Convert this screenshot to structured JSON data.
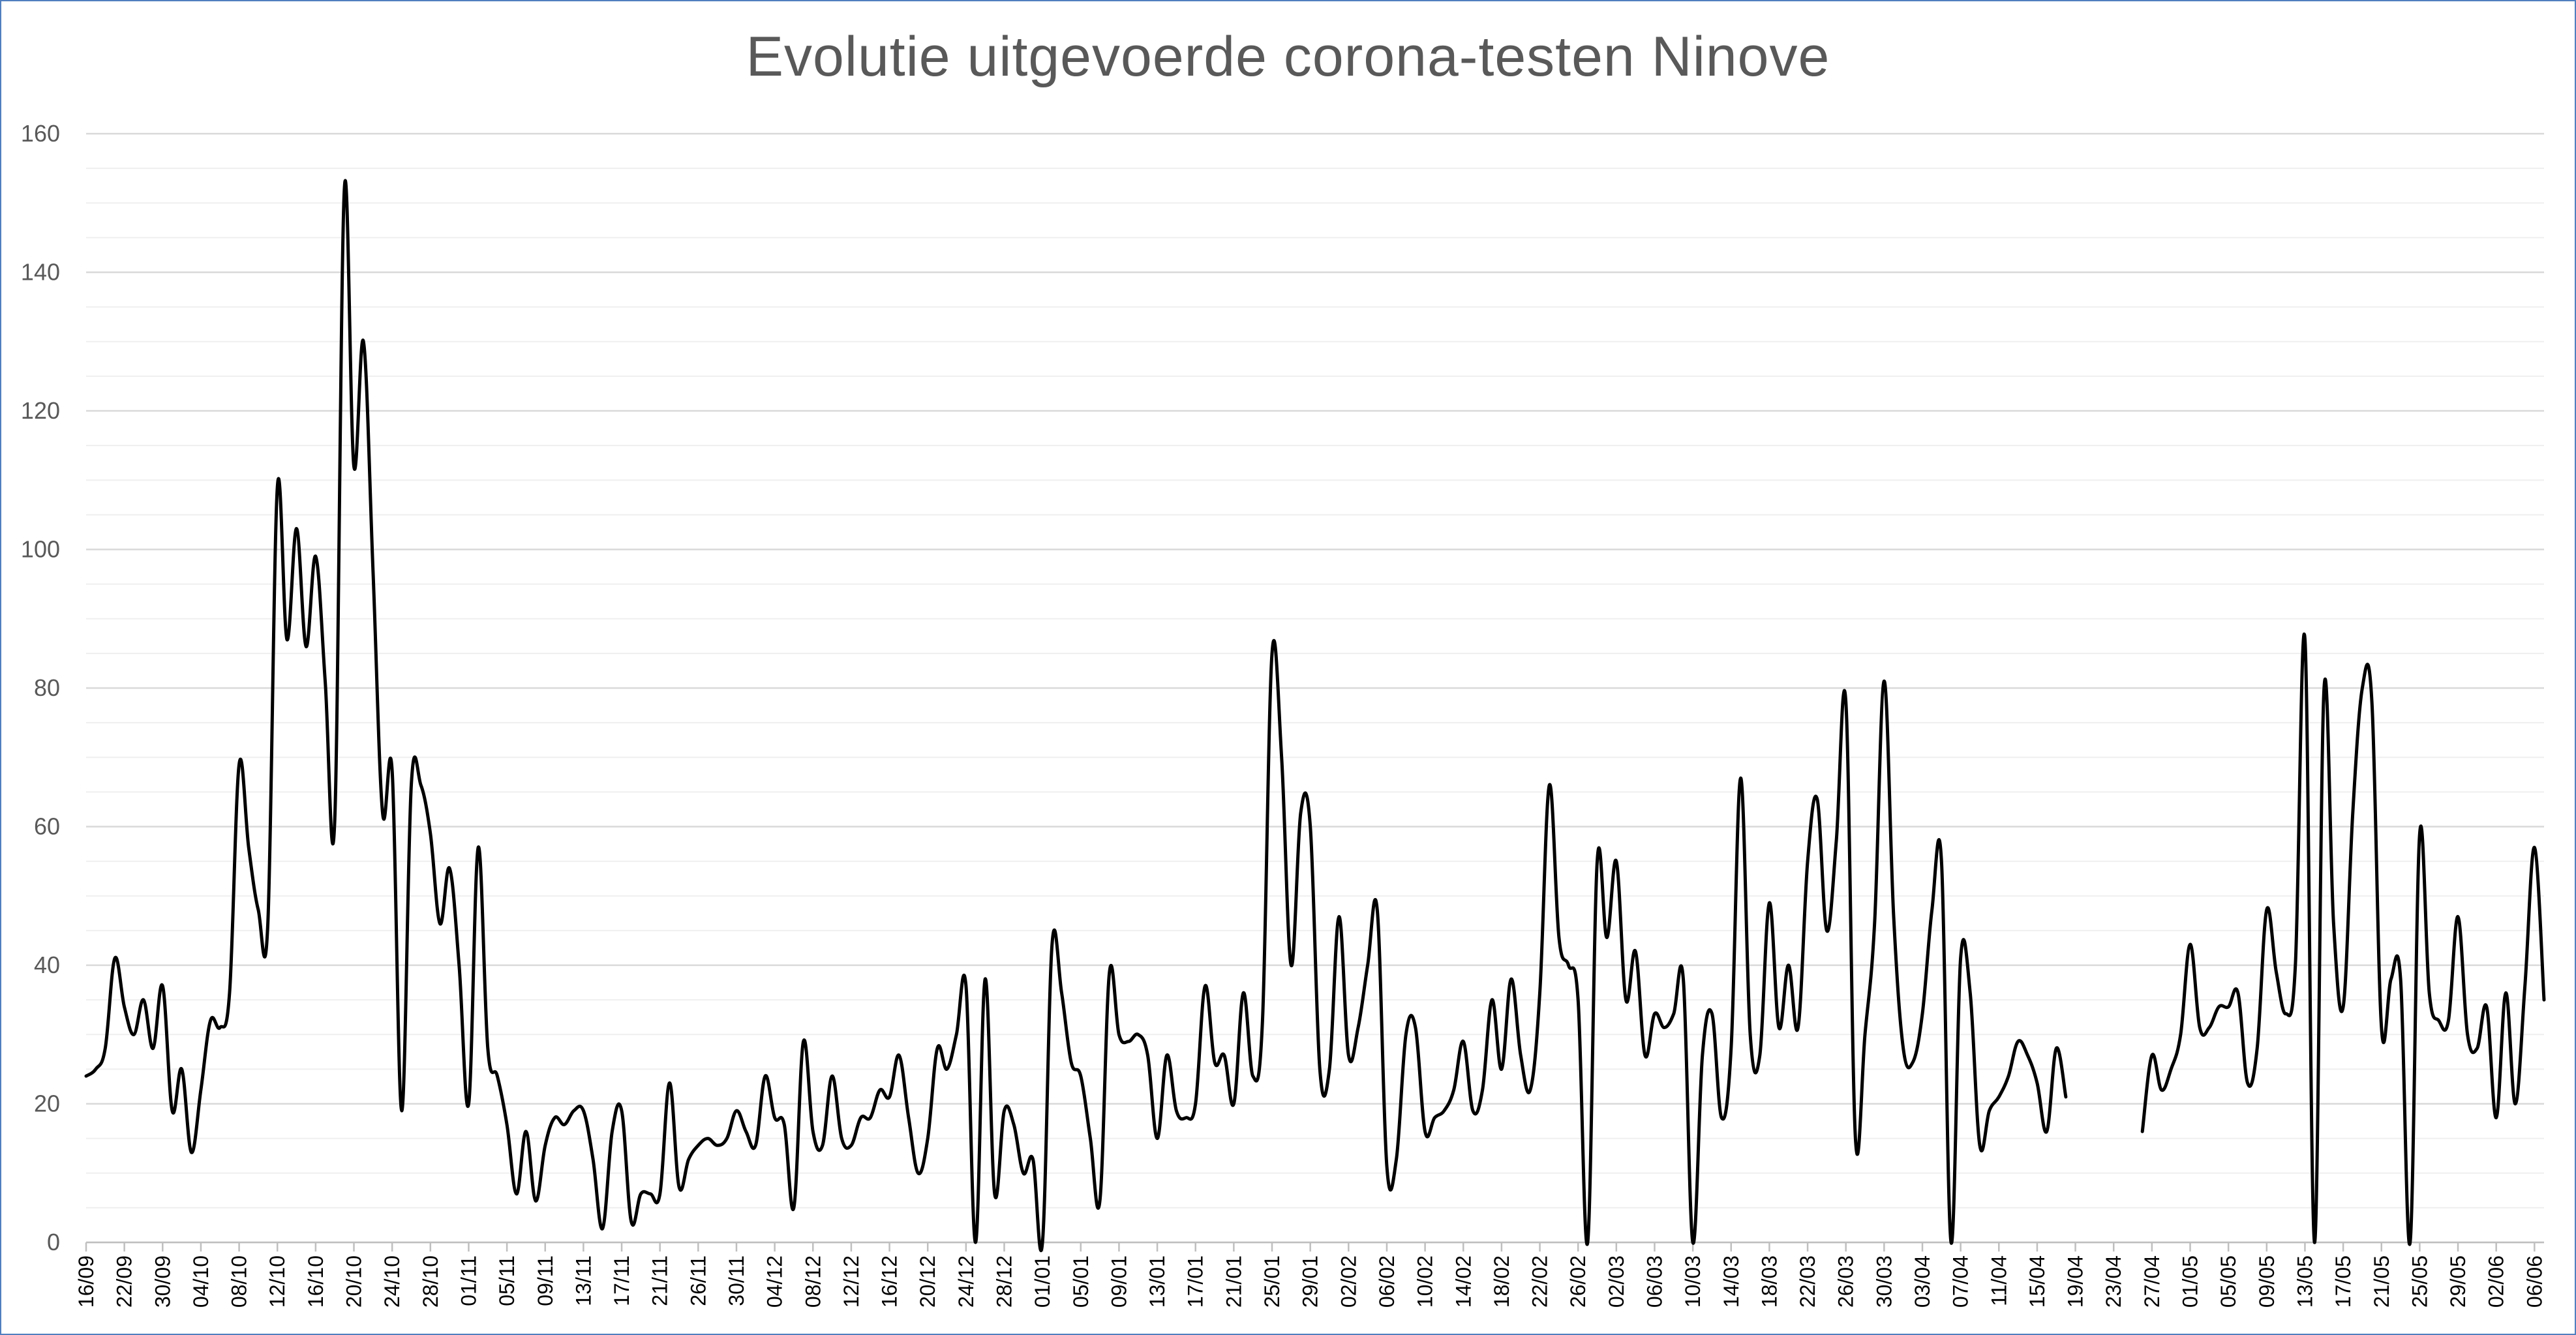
{
  "chart_data": {
    "type": "line",
    "title": "Evolutie uitgevoerde corona-testen Ninove",
    "xlabel": "",
    "ylabel": "",
    "ylim": [
      0,
      160
    ],
    "y_ticks": [
      0,
      20,
      40,
      60,
      80,
      100,
      120,
      140,
      160
    ],
    "grid": true,
    "legend": "none",
    "line_color": "#000000",
    "x_tick_labels": [
      "16/09",
      "22/09",
      "30/09",
      "04/10",
      "08/10",
      "12/10",
      "16/10",
      "20/10",
      "24/10",
      "28/10",
      "01/11",
      "05/11",
      "09/11",
      "13/11",
      "17/11",
      "21/11",
      "26/11",
      "30/11",
      "04/12",
      "08/12",
      "12/12",
      "16/12",
      "20/12",
      "24/12",
      "28/12",
      "01/01",
      "05/01",
      "09/01",
      "13/01",
      "17/01",
      "21/01",
      "25/01",
      "29/01",
      "02/02",
      "06/02",
      "10/02",
      "14/02",
      "18/02",
      "22/02",
      "26/02",
      "02/03",
      "06/03",
      "10/03",
      "14/03",
      "18/03",
      "22/03",
      "26/03",
      "30/03",
      "03/04",
      "07/04",
      "11/04",
      "15/04",
      "19/04",
      "23/04",
      "27/04",
      "01/05",
      "05/05",
      "09/05",
      "13/05",
      "17/05",
      "21/05",
      "25/05",
      "29/05",
      "02/06",
      "06/06"
    ],
    "x_tick_positions": [
      0,
      4,
      8,
      12,
      16,
      20,
      24,
      28,
      32,
      36,
      40,
      44,
      48,
      52,
      56,
      60,
      64,
      68,
      72,
      76,
      80,
      84,
      88,
      92,
      96,
      100,
      104,
      108,
      112,
      116,
      120,
      124,
      128,
      132,
      136,
      140,
      144,
      148,
      152,
      156,
      160,
      164,
      168,
      172,
      176,
      180,
      184,
      188,
      192,
      196,
      200,
      204,
      208,
      212,
      216,
      220,
      224,
      228,
      232,
      236,
      240,
      244,
      248,
      252,
      256
    ],
    "series": [
      {
        "values": [
          24,
          25,
          28,
          41,
          34,
          30,
          35,
          28,
          37,
          19,
          25,
          13,
          22,
          32,
          31,
          36,
          69,
          57,
          48,
          46,
          109,
          87,
          103,
          86,
          99,
          81,
          61,
          152,
          112,
          130,
          97,
          62,
          68,
          19,
          66,
          66,
          59,
          46,
          54,
          40,
          20,
          57,
          28,
          24,
          17,
          7,
          16,
          6,
          14,
          18,
          17,
          19,
          19,
          12,
          2,
          16,
          19,
          3,
          7,
          7,
          7,
          23,
          8,
          12,
          14,
          15,
          14,
          15,
          19,
          16,
          14,
          24,
          18,
          17,
          5,
          29,
          16,
          14,
          24,
          15,
          14,
          18,
          18,
          22,
          21,
          27,
          18,
          10,
          15,
          28,
          25,
          30,
          37,
          0,
          38,
          7,
          19,
          17,
          10,
          12,
          0,
          43,
          36,
          26,
          24,
          15,
          6,
          39,
          30,
          29,
          30,
          27,
          15,
          27,
          19,
          18,
          20,
          37,
          26,
          27,
          20,
          36,
          24,
          32,
          85,
          70,
          40,
          62,
          60,
          25,
          25,
          47,
          27,
          31,
          40,
          48,
          11,
          12,
          30,
          31,
          16,
          18,
          19,
          22,
          29,
          19,
          22,
          35,
          25,
          38,
          27,
          22,
          36,
          66,
          44,
          40,
          35,
          0,
          55,
          44,
          55,
          35,
          42,
          27,
          33,
          31,
          33,
          38,
          0,
          27,
          33,
          18,
          28,
          67,
          30,
          27,
          49,
          31,
          40,
          31,
          55,
          64,
          45,
          58,
          78,
          15,
          30,
          46,
          81,
          47,
          28,
          26,
          33,
          48,
          55,
          0,
          41,
          36,
          14,
          19,
          21,
          24,
          29,
          27,
          23,
          16,
          28,
          21,
          null,
          null,
          null,
          null,
          null,
          null,
          null,
          16,
          27,
          22,
          25,
          30,
          43,
          31,
          31,
          34,
          34,
          36,
          23,
          28,
          48,
          39,
          33,
          40,
          87,
          0,
          80,
          46,
          34,
          62,
          80,
          78,
          31,
          38,
          38,
          0,
          59,
          36,
          32,
          32,
          47,
          30,
          28,
          34,
          18,
          36,
          20,
          37,
          57,
          35
        ]
      }
    ]
  }
}
